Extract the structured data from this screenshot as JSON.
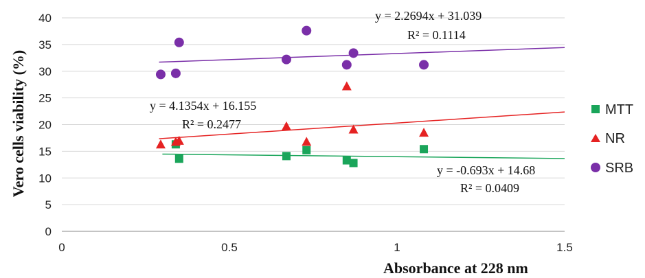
{
  "chart_data": {
    "type": "scatter",
    "xlabel": "Absorbance at 228 nm",
    "ylabel": "Vero cells viability (%)",
    "xlim": [
      0,
      1.5
    ],
    "ylim": [
      0,
      40
    ],
    "x_ticks": [
      0,
      0.5,
      1,
      1.5
    ],
    "x_tick_labels": [
      "0",
      "0.5",
      "1",
      "1.5"
    ],
    "y_ticks": [
      0,
      5,
      10,
      15,
      20,
      25,
      30,
      35,
      40
    ],
    "y_tick_labels": [
      "0",
      "5",
      "10",
      "15",
      "20",
      "25",
      "30",
      "35",
      "40"
    ],
    "grid": "horizontal",
    "legend_position": "right",
    "series": [
      {
        "name": "MTT",
        "marker": "square",
        "color": "#1aa55a",
        "points": [
          [
            0.34,
            16.3
          ],
          [
            0.35,
            13.6
          ],
          [
            0.67,
            14.1
          ],
          [
            0.73,
            15.2
          ],
          [
            0.85,
            13.3
          ],
          [
            0.87,
            12.8
          ],
          [
            1.08,
            15.4
          ]
        ],
        "trendline": {
          "slope": -0.693,
          "intercept": 14.68,
          "x_range": [
            0.3,
            1.5
          ]
        },
        "equation": "y = -0.693x + 14.68",
        "r2": "R² = 0.0409"
      },
      {
        "name": "NR",
        "marker": "triangle",
        "color": "#e52222",
        "points": [
          [
            0.295,
            16.3
          ],
          [
            0.34,
            16.8
          ],
          [
            0.35,
            17.0
          ],
          [
            0.67,
            19.7
          ],
          [
            0.73,
            16.8
          ],
          [
            0.85,
            27.2
          ],
          [
            0.87,
            19.1
          ],
          [
            1.08,
            18.5
          ]
        ],
        "trendline": {
          "slope": 4.1354,
          "intercept": 16.155,
          "x_range": [
            0.29,
            1.5
          ]
        },
        "equation": "y = 4.1354x + 16.155",
        "r2": "R² = 0.2477"
      },
      {
        "name": "SRB",
        "marker": "circle",
        "color": "#7a2fa8",
        "points": [
          [
            0.295,
            29.4
          ],
          [
            0.34,
            29.6
          ],
          [
            0.35,
            35.4
          ],
          [
            0.67,
            32.2
          ],
          [
            0.73,
            37.6
          ],
          [
            0.85,
            31.2
          ],
          [
            0.87,
            33.4
          ],
          [
            1.08,
            31.2
          ]
        ],
        "trendline": {
          "slope": 2.2694,
          "intercept": 31.039,
          "x_range": [
            0.29,
            1.5
          ]
        },
        "equation": "y = 2.2694x + 31.039",
        "r2": "R² = 0.1114"
      }
    ]
  }
}
